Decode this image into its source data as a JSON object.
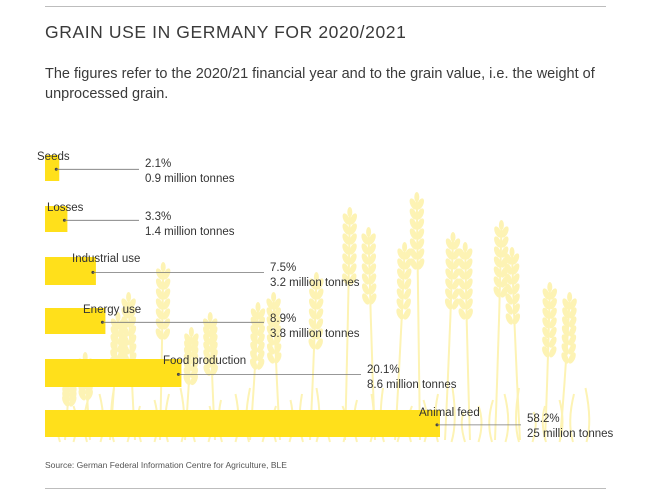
{
  "page": {
    "title": "GRAIN USE IN GERMANY FOR 2020/2021",
    "subtitle": "The figures refer to the 2020/21 financial year and to the grain value, i.e. the weight of unprocessed grain.",
    "source": "Source: German Federal Information Centre for Agriculture, BLE"
  },
  "colors": {
    "bar": "#ffe01b",
    "wheat": "#fdf3b4",
    "text": "#333333",
    "rule": "#bdbdbd"
  },
  "chart_data": {
    "type": "bar",
    "orientation": "horizontal",
    "title": "GRAIN USE IN GERMANY FOR 2020/2021",
    "subtitle": "The figures refer to the 2020/21 financial year and to the grain value, i.e. the weight of unprocessed grain.",
    "categories": [
      "Seeds",
      "Losses",
      "Industrial use",
      "Energy use",
      "Food production",
      "Animal feed"
    ],
    "values": [
      2.1,
      3.3,
      7.5,
      8.9,
      20.1,
      58.2
    ],
    "value_labels": [
      "2.1%",
      "3.3%",
      "7.5%",
      "8.9%",
      "20.1%",
      "58.2%"
    ],
    "tonnes_labels": [
      "0.9 million tonnes",
      "1.4 million tonnes",
      "3.2 million tonnes",
      "3.8 million tonnes",
      "8.6 million tonnes",
      "25 million tonnes"
    ],
    "unit": "%",
    "xlim": [
      0,
      58.2
    ],
    "grid": false,
    "legend": "none",
    "background_image": "wheat-ears"
  }
}
